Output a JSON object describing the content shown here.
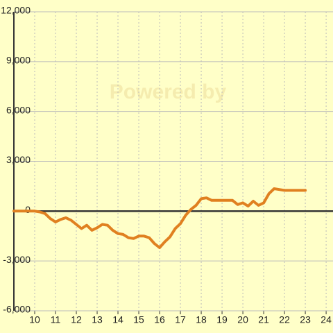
{
  "chart_data": {
    "type": "line",
    "watermark": "Powered by",
    "x": [
      9,
      10,
      10.25,
      10.5,
      10.75,
      11,
      11.25,
      11.5,
      11.75,
      12,
      12.25,
      12.5,
      12.75,
      13,
      13.25,
      13.5,
      13.75,
      14,
      14.25,
      14.5,
      14.75,
      15,
      15.25,
      15.5,
      15.75,
      16,
      16.25,
      16.5,
      16.75,
      17,
      17.25,
      17.5,
      17.75,
      18,
      18.25,
      18.5,
      18.75,
      19,
      19.25,
      19.5,
      19.75,
      20,
      20.25,
      20.5,
      20.75,
      21,
      21.25,
      21.5,
      21.75,
      22,
      22.5,
      23
    ],
    "series": [
      {
        "color": "#e08020",
        "values": [
          0,
          0,
          -50,
          -150,
          -450,
          -650,
          -500,
          -400,
          -550,
          -800,
          -1050,
          -850,
          -1150,
          -1000,
          -800,
          -850,
          -1150,
          -1350,
          -1400,
          -1600,
          -1650,
          -1500,
          -1500,
          -1600,
          -1950,
          -2200,
          -1850,
          -1550,
          -1050,
          -750,
          -250,
          100,
          350,
          750,
          800,
          650,
          650,
          650,
          650,
          650,
          400,
          500,
          300,
          600,
          350,
          500,
          1050,
          1350,
          1300,
          1250,
          1250,
          1250
        ]
      }
    ],
    "xlim": [
      9,
      24.33
    ],
    "ylim": [
      -6000,
      12000
    ],
    "xticks": [
      10,
      11,
      12,
      13,
      14,
      15,
      16,
      17,
      18,
      19,
      20,
      21,
      22,
      23,
      24
    ],
    "yticks": [
      {
        "value": -6000,
        "label": "-6,000"
      },
      {
        "value": -3000,
        "label": "-3,000"
      },
      0,
      {
        "value": 3000,
        "label": "3,000"
      },
      {
        "value": 6000,
        "label": "6,000"
      },
      {
        "value": 9000,
        "label": "9,000"
      },
      {
        "value": 12000,
        "label": "12,000"
      }
    ],
    "grid": true
  }
}
